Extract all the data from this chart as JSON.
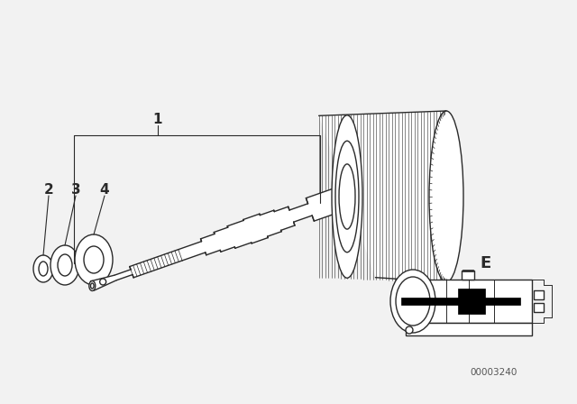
{
  "bg_color": "#f2f2f2",
  "line_color": "#2a2a2a",
  "diagram_id": "00003240",
  "label_E": "E",
  "labels": [
    "1",
    "2",
    "3",
    "4"
  ]
}
